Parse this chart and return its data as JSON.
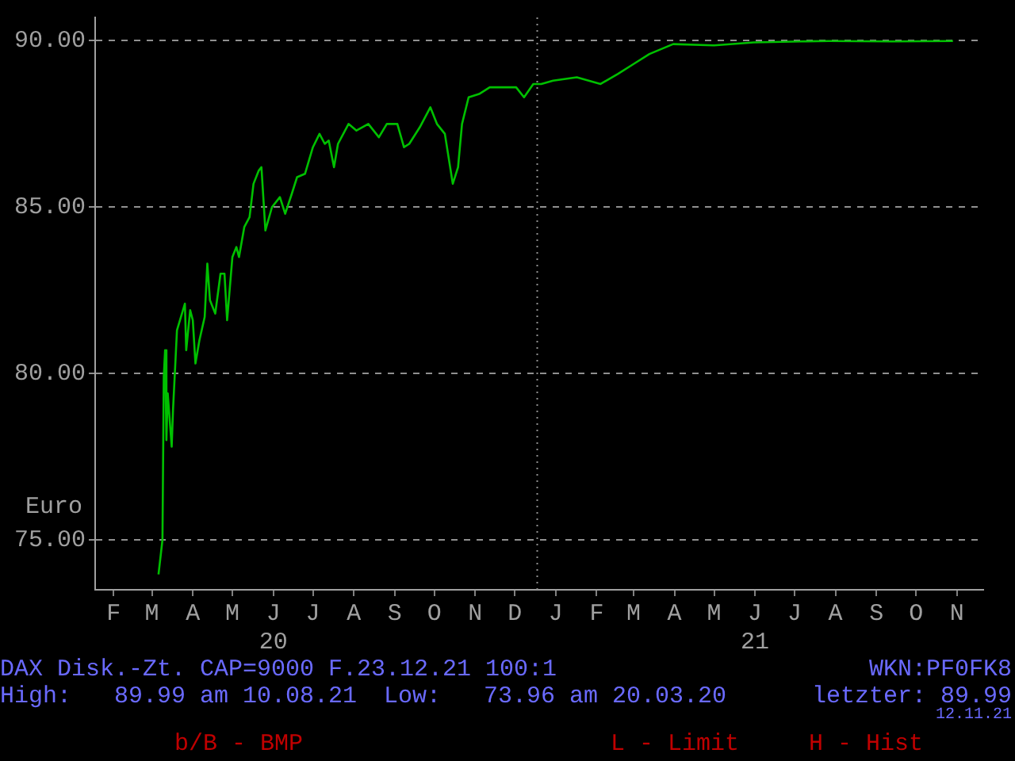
{
  "chart_data": {
    "type": "line",
    "ylabel": "Euro",
    "x": [
      "2020-03-20",
      "2020-03-23",
      "2020-03-24",
      "2020-03-25",
      "2020-03-26",
      "2020-03-27",
      "2020-03-30",
      "2020-03-31",
      "2020-04-02",
      "2020-04-03",
      "2020-04-06",
      "2020-04-09",
      "2020-04-10",
      "2020-04-13",
      "2020-04-15",
      "2020-04-17",
      "2020-04-20",
      "2020-04-24",
      "2020-04-26",
      "2020-04-28",
      "2020-05-02",
      "2020-05-06",
      "2020-05-09",
      "2020-05-11",
      "2020-05-15",
      "2020-05-18",
      "2020-05-20",
      "2020-05-24",
      "2020-05-28",
      "2020-05-31",
      "2020-06-04",
      "2020-06-06",
      "2020-06-09",
      "2020-06-14",
      "2020-06-20",
      "2020-06-24",
      "2020-06-29",
      "2020-07-03",
      "2020-07-09",
      "2020-07-15",
      "2020-07-20",
      "2020-07-24",
      "2020-07-27",
      "2020-07-31",
      "2020-08-03",
      "2020-08-11",
      "2020-08-17",
      "2020-08-26",
      "2020-09-03",
      "2020-09-09",
      "2020-09-17",
      "2020-09-22",
      "2020-09-26",
      "2020-10-04",
      "2020-10-12",
      "2020-10-17",
      "2020-10-23",
      "2020-10-29",
      "2020-11-02",
      "2020-11-05",
      "2020-11-10",
      "2020-11-18",
      "2020-11-26",
      "2020-12-10",
      "2020-12-16",
      "2020-12-22",
      "2020-12-29",
      "2021-01-04",
      "2021-01-13",
      "2021-01-31",
      "2021-02-18",
      "2021-03-03",
      "2021-03-15",
      "2021-03-27",
      "2021-04-14",
      "2021-05-15",
      "2021-06-14",
      "2021-07-20",
      "2021-08-10",
      "2021-09-27",
      "2021-11-12"
    ],
    "series": [
      {
        "color": "#00c000",
        "values": [
          73.96,
          75.0,
          79.9,
          80.7,
          78.0,
          79.4,
          77.8,
          78.9,
          80.5,
          81.3,
          81.7,
          82.1,
          80.7,
          81.9,
          81.6,
          80.3,
          81.0,
          81.7,
          83.3,
          82.2,
          81.8,
          83.0,
          83.0,
          81.6,
          83.5,
          83.8,
          83.5,
          84.4,
          84.7,
          85.7,
          86.1,
          86.2,
          84.3,
          85.0,
          85.3,
          84.8,
          85.4,
          85.9,
          86.0,
          86.8,
          87.2,
          86.9,
          87.0,
          86.2,
          86.9,
          87.5,
          87.3,
          87.5,
          87.1,
          87.5,
          87.5,
          86.8,
          86.9,
          87.4,
          88.0,
          87.5,
          87.2,
          85.7,
          86.2,
          87.5,
          88.3,
          88.4,
          88.6,
          88.6,
          88.6,
          88.3,
          88.7,
          88.7,
          88.8,
          88.9,
          88.7,
          89.0,
          89.3,
          89.6,
          89.9,
          89.86,
          89.95,
          89.98,
          89.99,
          89.98,
          89.99
        ]
      }
    ],
    "xlim": [
      "2020-02-01",
      "2021-12-05"
    ],
    "xticks": [
      {
        "value": "2020-02-15",
        "label": "F"
      },
      {
        "value": "2020-03-15",
        "label": "M"
      },
      {
        "value": "2020-04-15",
        "label": "A"
      },
      {
        "value": "2020-05-15",
        "label": "M"
      },
      {
        "value": "2020-06-15",
        "label": "J\n20"
      },
      {
        "value": "2020-07-15",
        "label": "J"
      },
      {
        "value": "2020-08-15",
        "label": "A"
      },
      {
        "value": "2020-09-15",
        "label": "S"
      },
      {
        "value": "2020-10-15",
        "label": "O"
      },
      {
        "value": "2020-11-15",
        "label": "N"
      },
      {
        "value": "2020-12-15",
        "label": "D"
      },
      {
        "value": "2021-01-15",
        "label": "J"
      },
      {
        "value": "2021-02-15",
        "label": "F"
      },
      {
        "value": "2021-03-15",
        "label": "M"
      },
      {
        "value": "2021-04-15",
        "label": "A"
      },
      {
        "value": "2021-05-15",
        "label": "M"
      },
      {
        "value": "2021-06-15",
        "label": "J\n21"
      },
      {
        "value": "2021-07-15",
        "label": "J"
      },
      {
        "value": "2021-08-15",
        "label": "A"
      },
      {
        "value": "2021-09-15",
        "label": "S"
      },
      {
        "value": "2021-10-15",
        "label": "O"
      },
      {
        "value": "2021-11-15",
        "label": "N"
      }
    ],
    "ylim": [
      73.5,
      90.7
    ],
    "yticks": [
      {
        "value": 75,
        "label": "75.00"
      },
      {
        "value": 80,
        "label": "80.00"
      },
      {
        "value": 85,
        "label": "85.00"
      },
      {
        "value": 90,
        "label": "90.00"
      }
    ],
    "grid": "y",
    "legend": false,
    "marker": "none",
    "line_style": "solid",
    "ref_lines": [
      {
        "axis": "x",
        "value": "2021-01-01",
        "line_style": "dotted"
      }
    ],
    "annotations": [
      "DAX Disk.-Zt. CAP=9000 F.23.12.21 100:1",
      "WKN:PF0FK8",
      "High:   89.99 am 10.08.21",
      "Low:   73.96 am 20.03.20",
      "letzter: 89.99",
      "12.11.21",
      "b/B - BMP",
      "L - Limit",
      "H - Hist"
    ]
  }
}
